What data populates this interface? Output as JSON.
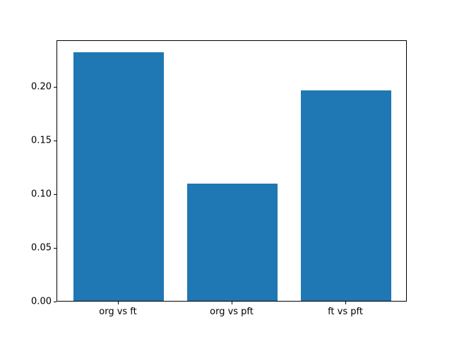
{
  "figure": {
    "background": "#ffffff"
  },
  "chart_data": {
    "type": "bar",
    "title": "",
    "xlabel": "",
    "ylabel": "",
    "categories": [
      "org vs ft",
      "org vs pft",
      "ft vs pft"
    ],
    "values": [
      0.232,
      0.109,
      0.196
    ],
    "bar_color": "#1f77b4",
    "bar_width": 0.8,
    "xlim": [
      -0.54,
      2.54
    ],
    "ylim": [
      0,
      0.2436
    ],
    "yticks": [
      0,
      0.05,
      0.1,
      0.15,
      0.2
    ],
    "ytick_labels": [
      "0.00",
      "0.05",
      "0.10",
      "0.15",
      "0.20"
    ],
    "grid": false,
    "legend": "none",
    "spine_color": "#000000",
    "tick_label_color": "#000000"
  }
}
